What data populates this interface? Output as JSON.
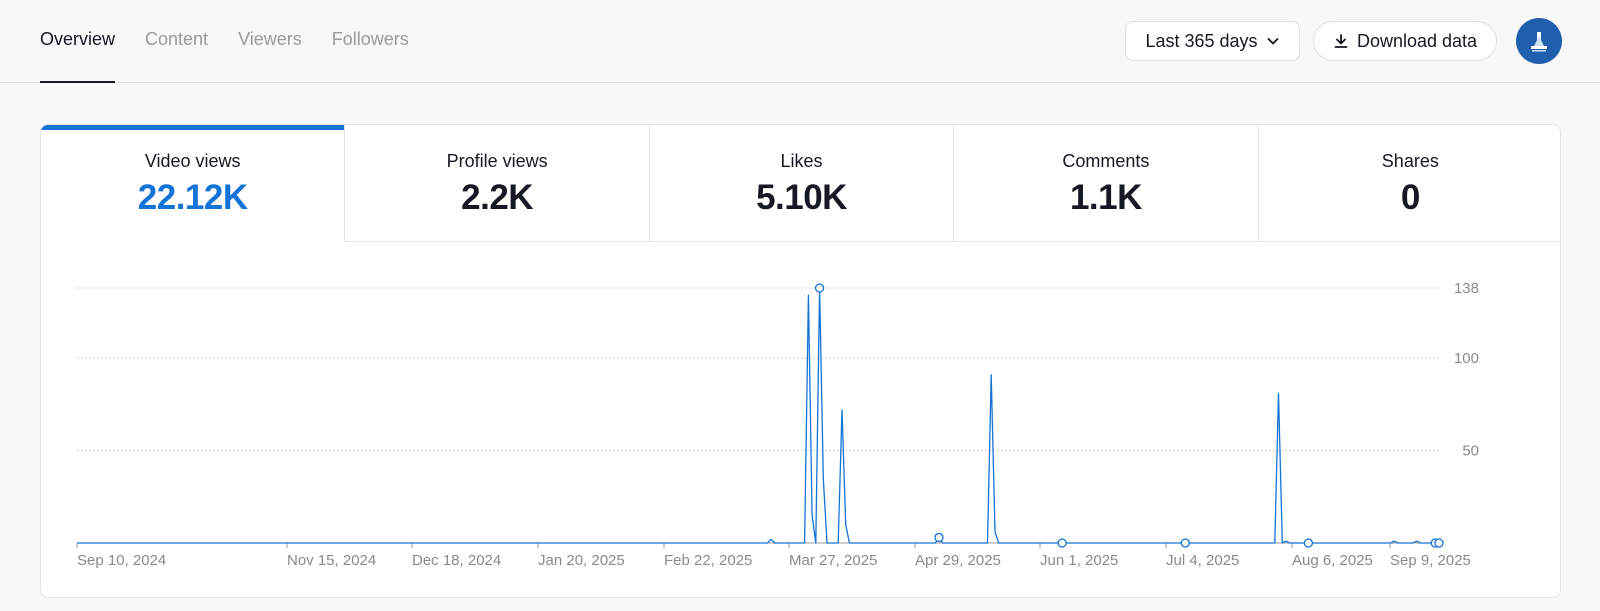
{
  "nav": {
    "tabs": [
      {
        "label": "Overview",
        "active": true
      },
      {
        "label": "Content",
        "active": false
      },
      {
        "label": "Viewers",
        "active": false
      },
      {
        "label": "Followers",
        "active": false
      }
    ]
  },
  "toolbar": {
    "range_label": "Last 365 days",
    "download_label": "Download data"
  },
  "metrics": [
    {
      "label": "Video views",
      "value": "22.12K",
      "active": true
    },
    {
      "label": "Profile views",
      "value": "2.2K",
      "active": false
    },
    {
      "label": "Likes",
      "value": "5.10K",
      "active": false
    },
    {
      "label": "Comments",
      "value": "1.1K",
      "active": false
    },
    {
      "label": "Shares",
      "value": "0",
      "active": false
    }
  ],
  "colors": {
    "accent": "#1473d6",
    "text": "#161823",
    "muted": "#9a9a9a",
    "avatar": "#1f5fae"
  },
  "chart_data": {
    "type": "line",
    "title": "",
    "xlabel": "",
    "ylabel": "",
    "x_start": "2024-09-10",
    "x_end": "2025-09-10",
    "x_tick_labels": [
      "Sep 10, 2024",
      "Nov 15, 2024",
      "Dec 18, 2024",
      "Jan 20, 2025",
      "Feb 22, 2025",
      "Mar 27, 2025",
      "Apr 29, 2025",
      "Jun 1, 2025",
      "Jul 4, 2025",
      "Aug 6, 2025",
      "Sep 9, 2025"
    ],
    "y_tick_labels": [
      "50",
      "100",
      "138"
    ],
    "ylim": [
      0,
      138
    ],
    "y_axis_position": "right",
    "grid": true,
    "series": [
      {
        "color": "#1473d6",
        "points": [
          {
            "x": "2024-09-10",
            "y": 0
          },
          {
            "x": "2025-03-14",
            "y": 0
          },
          {
            "x": "2025-03-15",
            "y": 2
          },
          {
            "x": "2025-03-16",
            "y": 0
          },
          {
            "x": "2025-03-24",
            "y": 0
          },
          {
            "x": "2025-03-25",
            "y": 134
          },
          {
            "x": "2025-03-26",
            "y": 15
          },
          {
            "x": "2025-03-27",
            "y": 0
          },
          {
            "x": "2025-03-28",
            "y": 138
          },
          {
            "x": "2025-03-29",
            "y": 35
          },
          {
            "x": "2025-03-30",
            "y": 0
          },
          {
            "x": "2025-04-02",
            "y": 0
          },
          {
            "x": "2025-04-03",
            "y": 72
          },
          {
            "x": "2025-04-04",
            "y": 10
          },
          {
            "x": "2025-04-05",
            "y": 0
          },
          {
            "x": "2025-04-28",
            "y": 0
          },
          {
            "x": "2025-04-29",
            "y": 3
          },
          {
            "x": "2025-04-30",
            "y": 0
          },
          {
            "x": "2025-05-12",
            "y": 0
          },
          {
            "x": "2025-05-13",
            "y": 91
          },
          {
            "x": "2025-05-14",
            "y": 6
          },
          {
            "x": "2025-05-15",
            "y": 0
          },
          {
            "x": "2025-07-28",
            "y": 0
          },
          {
            "x": "2025-07-29",
            "y": 81
          },
          {
            "x": "2025-07-30",
            "y": 0
          },
          {
            "x": "2025-07-31",
            "y": 1
          },
          {
            "x": "2025-08-01",
            "y": 0
          },
          {
            "x": "2025-08-28",
            "y": 0
          },
          {
            "x": "2025-08-29",
            "y": 1
          },
          {
            "x": "2025-08-30",
            "y": 0
          },
          {
            "x": "2025-09-03",
            "y": 0
          },
          {
            "x": "2025-09-04",
            "y": 1
          },
          {
            "x": "2025-09-05",
            "y": 0
          },
          {
            "x": "2025-09-10",
            "y": 0
          }
        ],
        "markers": [
          {
            "x": "2025-03-28",
            "y": 138
          },
          {
            "x": "2025-04-29",
            "y": 3
          },
          {
            "x": "2025-06-01",
            "y": 0
          },
          {
            "x": "2025-07-04",
            "y": 0
          },
          {
            "x": "2025-08-06",
            "y": 0
          },
          {
            "x": "2025-09-09",
            "y": 0
          },
          {
            "x": "2025-09-10",
            "y": 0
          }
        ]
      }
    ]
  }
}
